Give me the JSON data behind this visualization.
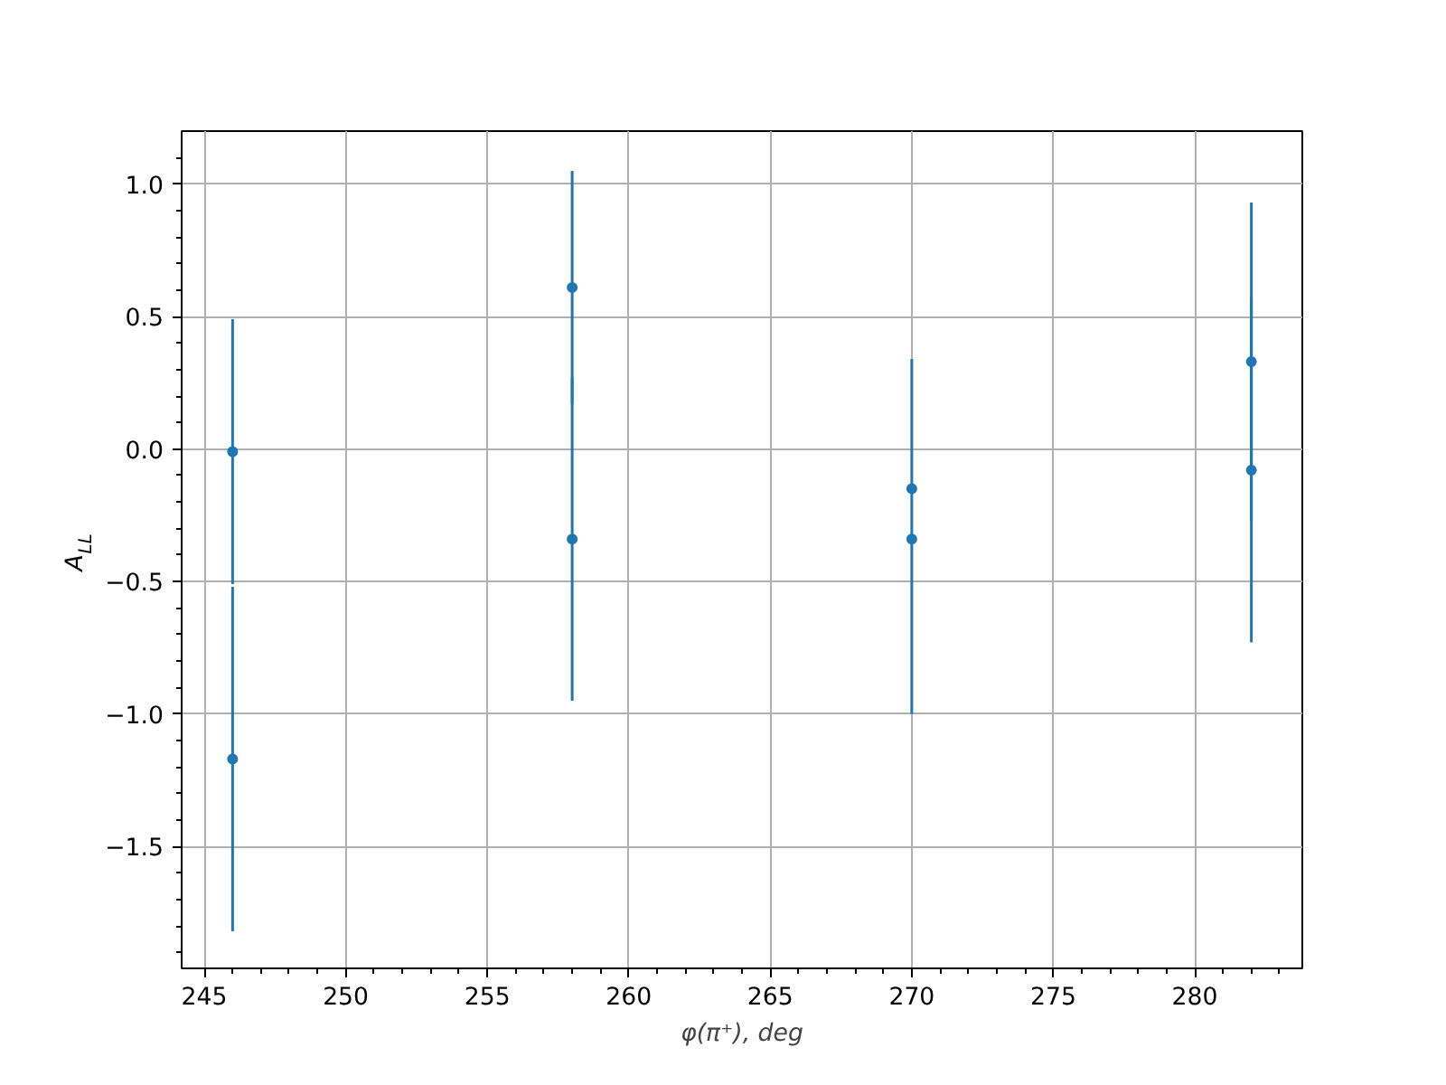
{
  "chart_data": {
    "type": "scatter",
    "xlabel": "φ(π⁺), deg",
    "ylabel": "A$_{LL}$",
    "x": [
      246,
      258,
      270,
      282
    ],
    "series": [
      {
        "color": "#1f77b4",
        "values": [
          -0.01,
          0.61,
          -0.15,
          0.33
        ],
        "errors": [
          0.5,
          0.44,
          null,
          0.6
        ]
      },
      {
        "color": "#1f77b4",
        "values": [
          -1.17,
          -0.34,
          -0.34,
          -0.08
        ],
        "errors": [
          0.65,
          0.61,
          [
            -1.0,
            0.34
          ],
          0.65
        ]
      }
    ],
    "xlim": [
      244.2,
      283.8
    ],
    "ylim": [
      -1.96,
      1.2
    ],
    "xticks": [
      245,
      250,
      255,
      260,
      265,
      270,
      275,
      280
    ],
    "yticks": [
      {
        "value": -1.5,
        "label": "−1.5"
      },
      {
        "value": -1.0,
        "label": "−1.0"
      },
      {
        "value": -0.5,
        "label": "−0.5"
      },
      {
        "value": 0.0,
        "label": "0.0"
      },
      {
        "value": 0.5,
        "label": "0.5"
      },
      {
        "value": 1.0,
        "label": "1.0"
      }
    ],
    "grid": true,
    "marker": "circle"
  }
}
